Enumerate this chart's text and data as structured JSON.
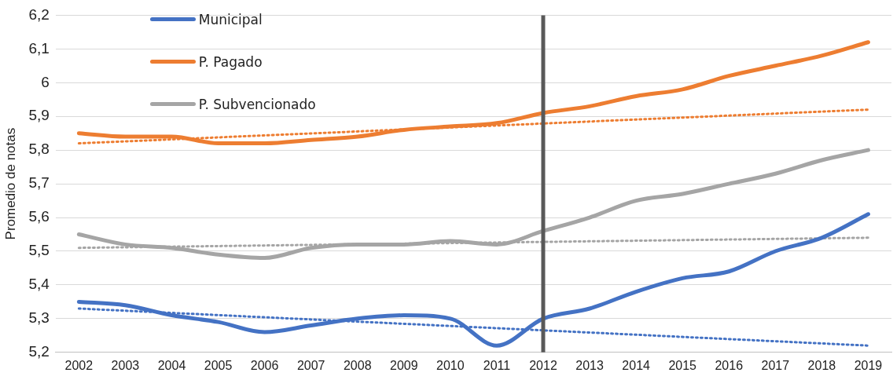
{
  "chart_data": {
    "type": "line",
    "ylabel": "Promedio de notas",
    "categories": [
      "2002",
      "2003",
      "2004",
      "2005",
      "2006",
      "2007",
      "2008",
      "2009",
      "2010",
      "2011",
      "2012",
      "2013",
      "2014",
      "2015",
      "2016",
      "2017",
      "2018",
      "2019"
    ],
    "series": [
      {
        "name": "Municipal",
        "color": "#4472c4",
        "values": [
          5.35,
          5.34,
          5.31,
          5.29,
          5.26,
          5.28,
          5.3,
          5.31,
          5.3,
          5.22,
          5.3,
          5.33,
          5.38,
          5.42,
          5.44,
          5.5,
          5.54,
          5.61
        ]
      },
      {
        "name": "P. Pagado",
        "color": "#ed7d31",
        "values": [
          5.85,
          5.84,
          5.84,
          5.82,
          5.82,
          5.83,
          5.84,
          5.86,
          5.87,
          5.88,
          5.91,
          5.93,
          5.96,
          5.98,
          6.02,
          6.05,
          6.08,
          6.12
        ]
      },
      {
        "name": "P. Subvencionado",
        "color": "#a5a5a5",
        "values": [
          5.55,
          5.52,
          5.51,
          5.49,
          5.48,
          5.51,
          5.52,
          5.52,
          5.53,
          5.52,
          5.56,
          5.6,
          5.65,
          5.67,
          5.7,
          5.73,
          5.77,
          5.8
        ]
      },
      {
        "type": "line",
        "color": "#4472c4",
        "line_style": "dotted",
        "values": [
          5.33,
          null,
          null,
          null,
          null,
          null,
          null,
          null,
          null,
          null,
          null,
          null,
          null,
          null,
          null,
          null,
          null,
          5.22
        ]
      },
      {
        "type": "line",
        "color": "#ed7d31",
        "line_style": "dotted",
        "values": [
          5.82,
          null,
          null,
          null,
          null,
          null,
          null,
          null,
          null,
          null,
          null,
          null,
          null,
          null,
          null,
          null,
          null,
          5.92
        ]
      },
      {
        "type": "line",
        "color": "#a5a5a5",
        "line_style": "dotted",
        "values": [
          5.51,
          null,
          null,
          null,
          null,
          null,
          null,
          null,
          null,
          null,
          null,
          null,
          null,
          null,
          null,
          null,
          null,
          5.54
        ]
      }
    ],
    "ylim": [
      5.2,
      6.2
    ],
    "yticks": [
      {
        "value": 5.2,
        "label": "5,2"
      },
      {
        "value": 5.3,
        "label": "5,3"
      },
      {
        "value": 5.4,
        "label": "5,4"
      },
      {
        "value": 5.5,
        "label": "5,5"
      },
      {
        "value": 5.6,
        "label": "5,6"
      },
      {
        "value": 5.7,
        "label": "5,7"
      },
      {
        "value": 5.8,
        "label": "5,8"
      },
      {
        "value": 5.9,
        "label": "5,9"
      },
      {
        "value": 6,
        "label": "6"
      },
      {
        "value": 6.1,
        "label": "6,1"
      },
      {
        "value": 6.2,
        "label": "6,2"
      }
    ],
    "ref_lines": [
      {
        "axis": "x",
        "value": "2012",
        "color": "#595959"
      }
    ],
    "grid": "y",
    "legend": "top left",
    "marker": "none",
    "line_style": "solid"
  }
}
